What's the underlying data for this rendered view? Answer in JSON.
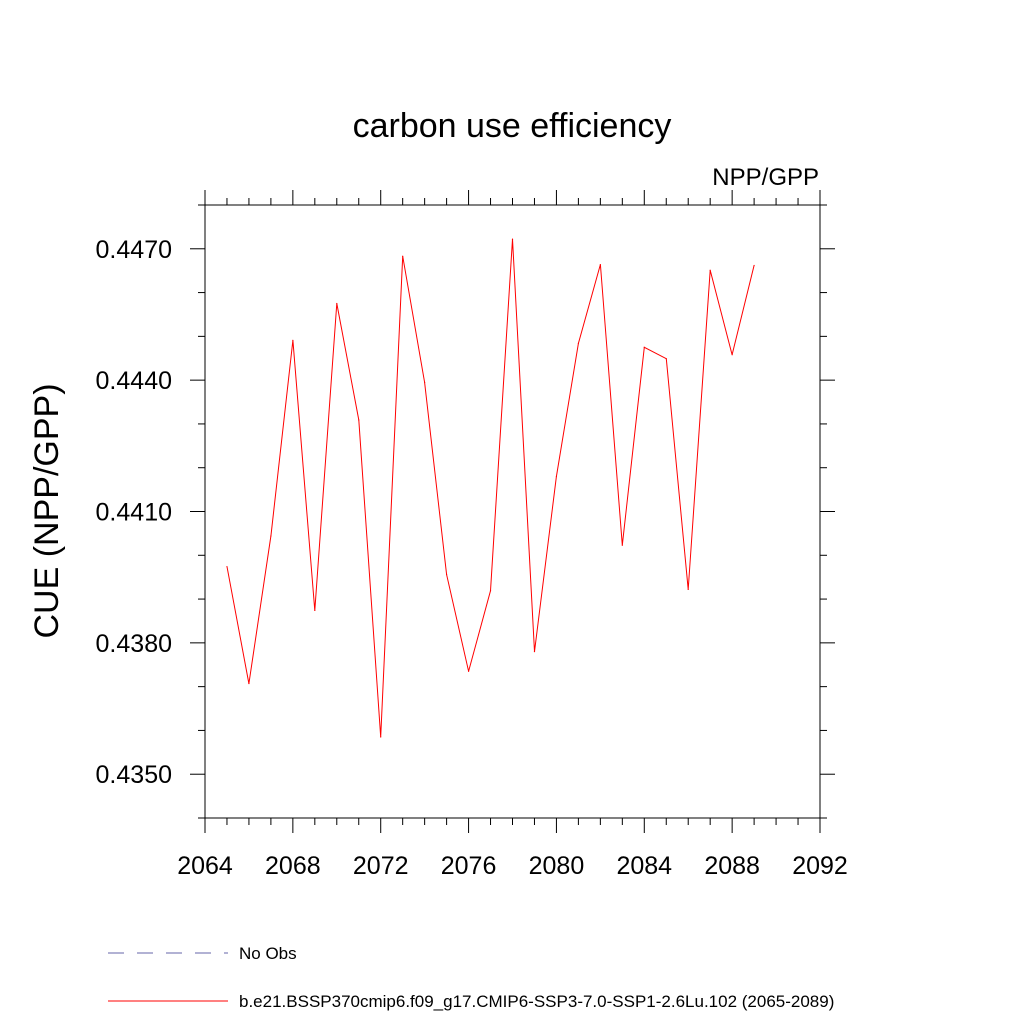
{
  "chart_data": {
    "type": "line",
    "title": "carbon use efficiency",
    "subtitle": "NPP/GPP",
    "xlabel": "",
    "ylabel": "CUE  (NPP/GPP)",
    "xlim": [
      2064,
      2092
    ],
    "ylim": [
      0.434,
      0.448
    ],
    "x_ticks": [
      2064,
      2068,
      2072,
      2076,
      2080,
      2084,
      2088,
      2092
    ],
    "x_tick_labels": [
      "2064",
      "2068",
      "2072",
      "2076",
      "2080",
      "2084",
      "2088",
      "2092"
    ],
    "y_ticks": [
      0.435,
      0.438,
      0.441,
      0.444,
      0.447
    ],
    "y_tick_labels": [
      "0.4350",
      "0.4380",
      "0.4410",
      "0.4440",
      "0.4470"
    ],
    "grid": false,
    "series": [
      {
        "name": "b.e21.BSSP370cmip6.f09_g17.CMIP6-SSP3-7.0-SSP1-2.6Lu.102 (2065-2089)",
        "color": "#ff0000",
        "x": [
          2065,
          2066,
          2067,
          2068,
          2069,
          2070,
          2071,
          2072,
          2073,
          2074,
          2075,
          2076,
          2077,
          2078,
          2079,
          2080,
          2081,
          2082,
          2083,
          2084,
          2085,
          2086,
          2087,
          2088,
          2089
        ],
        "values": [
          0.43974,
          0.43707,
          0.44044,
          0.44491,
          0.43874,
          0.44575,
          0.44309,
          0.43585,
          0.44683,
          0.44395,
          0.43956,
          0.43735,
          0.43919,
          0.44722,
          0.4378,
          0.4418,
          0.44484,
          0.44664,
          0.44023,
          0.44475,
          0.44449,
          0.43922,
          0.44651,
          0.44458,
          0.44662
        ]
      }
    ],
    "legend": {
      "position": "bottom",
      "entries": [
        {
          "label": "No Obs",
          "color": "#6666aa",
          "style": "dashed"
        },
        {
          "label": "b.e21.BSSP370cmip6.f09_g17.CMIP6-SSP3-7.0-SSP1-2.6Lu.102 (2065-2089)",
          "color": "#ff0000",
          "style": "solid"
        }
      ]
    }
  }
}
